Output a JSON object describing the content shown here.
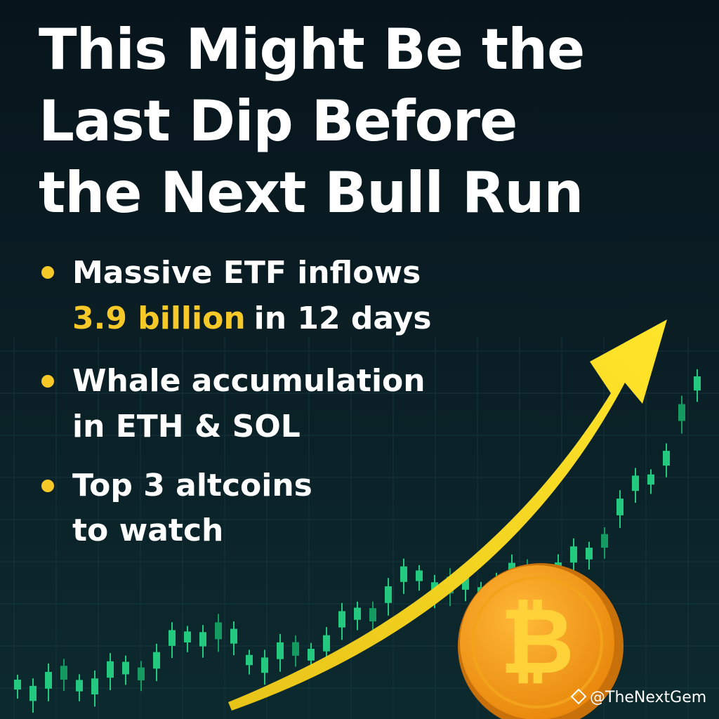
{
  "title": {
    "lines": [
      "This Might Be the",
      "Last Dip Before",
      "the Next Bull Run"
    ]
  },
  "bullets": [
    {
      "line1": "Massive ETF inflows",
      "highlight": "3.9 billion",
      "line2": "in 12 days"
    },
    {
      "line1": "Whale accumulation",
      "line2": "in ETH & SOL"
    },
    {
      "line1": "Top 3 altcoins",
      "line2": "to watch"
    }
  ],
  "watermark": "@TheNextGem"
}
